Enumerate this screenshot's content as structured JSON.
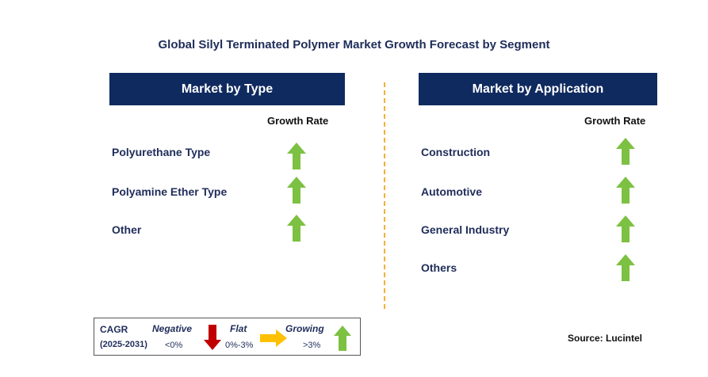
{
  "title": "Global Silyl Terminated Polymer Market Growth Forecast by Segment",
  "left_panel": {
    "header": "Market by Type",
    "growth_label": "Growth Rate",
    "items": [
      {
        "label": "Polyurethane Type",
        "trend": "growing"
      },
      {
        "label": "Polyamine Ether Type",
        "trend": "growing"
      },
      {
        "label": "Other",
        "trend": "growing"
      }
    ]
  },
  "right_panel": {
    "header": "Market by Application",
    "growth_label": "Growth Rate",
    "items": [
      {
        "label": "Construction",
        "trend": "growing"
      },
      {
        "label": "Automotive",
        "trend": "growing"
      },
      {
        "label": "General Industry",
        "trend": "growing"
      },
      {
        "label": "Others",
        "trend": "growing"
      }
    ]
  },
  "legend": {
    "cagr_label": "CAGR",
    "period": "(2025-2031)",
    "negative": {
      "label": "Negative",
      "range": "<0%",
      "icon": "down-arrow-icon"
    },
    "flat": {
      "label": "Flat",
      "range": "0%-3%",
      "icon": "right-arrow-icon"
    },
    "growing": {
      "label": "Growing",
      "range": ">3%",
      "icon": "up-arrow-icon"
    }
  },
  "source": "Source: Lucintel",
  "colors": {
    "header_bg": "#0f2a5f",
    "growing": "#7dc142",
    "negative": "#c00000",
    "flat": "#ffc000",
    "divider": "#f2b233"
  }
}
